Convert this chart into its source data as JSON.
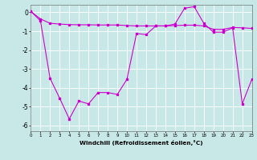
{
  "xlabel": "Windchill (Refroidissement éolien,°C)",
  "xlim": [
    0,
    23
  ],
  "ylim": [
    -6.3,
    0.4
  ],
  "yticks": [
    0,
    -1,
    -2,
    -3,
    -4,
    -5,
    -6
  ],
  "xticks": [
    0,
    1,
    2,
    3,
    4,
    5,
    6,
    7,
    8,
    9,
    10,
    11,
    12,
    13,
    14,
    15,
    16,
    17,
    18,
    19,
    20,
    21,
    22,
    23
  ],
  "bg_color": "#c8e8e8",
  "grid_color": "#ffffff",
  "line_color": "#cc00cc",
  "line1_x": [
    0,
    1,
    2,
    3,
    4,
    5,
    6,
    7,
    8,
    9,
    10,
    11,
    12,
    13,
    14,
    15,
    16,
    17,
    18,
    19,
    20,
    21,
    22,
    23
  ],
  "line1_y": [
    0.05,
    -0.35,
    -0.58,
    -0.62,
    -0.65,
    -0.66,
    -0.66,
    -0.67,
    -0.67,
    -0.67,
    -0.7,
    -0.72,
    -0.72,
    -0.72,
    -0.72,
    -0.7,
    -0.68,
    -0.68,
    -0.72,
    -0.9,
    -0.9,
    -0.8,
    -0.82,
    -0.85
  ],
  "line2_x": [
    0,
    1,
    2,
    3,
    4,
    5,
    6,
    7,
    8,
    9,
    10,
    11,
    12,
    13,
    14,
    15,
    16,
    17,
    18,
    19,
    20,
    21,
    22,
    23
  ],
  "line2_y": [
    0.05,
    -0.45,
    -3.5,
    -4.55,
    -5.65,
    -4.7,
    -4.85,
    -4.25,
    -4.25,
    -4.35,
    -3.55,
    -1.12,
    -1.18,
    -0.72,
    -0.72,
    -0.62,
    0.22,
    0.3,
    -0.58,
    -1.05,
    -1.05,
    -0.82,
    -4.85,
    -3.55
  ]
}
